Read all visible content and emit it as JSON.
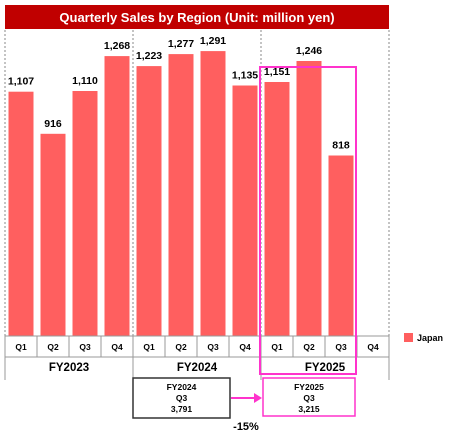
{
  "colors": {
    "title_bg": "#c00000",
    "bar": "#ff5f5f",
    "highlight": "#ff33cc",
    "arrow": "#ff33cc",
    "compare_box_border": "#333333"
  },
  "chart_data": {
    "type": "bar",
    "title": "Quarterly Sales by Region (Unit: million yen)",
    "series": [
      {
        "name": "Japan",
        "values": [
          1107,
          916,
          1110,
          1268,
          1223,
          1277,
          1291,
          1135,
          1151,
          1246,
          818,
          null
        ]
      }
    ],
    "categories": [
      "Q1",
      "Q2",
      "Q3",
      "Q4",
      "Q1",
      "Q2",
      "Q3",
      "Q4",
      "Q1",
      "Q2",
      "Q3",
      "Q4"
    ],
    "value_labels": [
      "1,107",
      "916",
      "1,110",
      "1,268",
      "1,223",
      "1,277",
      "1,291",
      "1,135",
      "1,151",
      "1,246",
      "818",
      ""
    ],
    "groups": [
      {
        "label": "FY2023",
        "start": 0,
        "end": 3
      },
      {
        "label": "FY2024",
        "start": 4,
        "end": 7
      },
      {
        "label": "FY2025",
        "start": 8,
        "end": 11
      }
    ],
    "ylim": [
      0,
      1400
    ],
    "highlight_group": "FY2025",
    "legend": {
      "position": "right",
      "entries": [
        "Japan"
      ]
    }
  },
  "comparison": {
    "left_box": {
      "year": "FY2024",
      "quarter": "Q3",
      "value": "3,791"
    },
    "right_box": {
      "year": "FY2025",
      "quarter": "Q3",
      "value": "3,215"
    },
    "change": "-15%"
  }
}
